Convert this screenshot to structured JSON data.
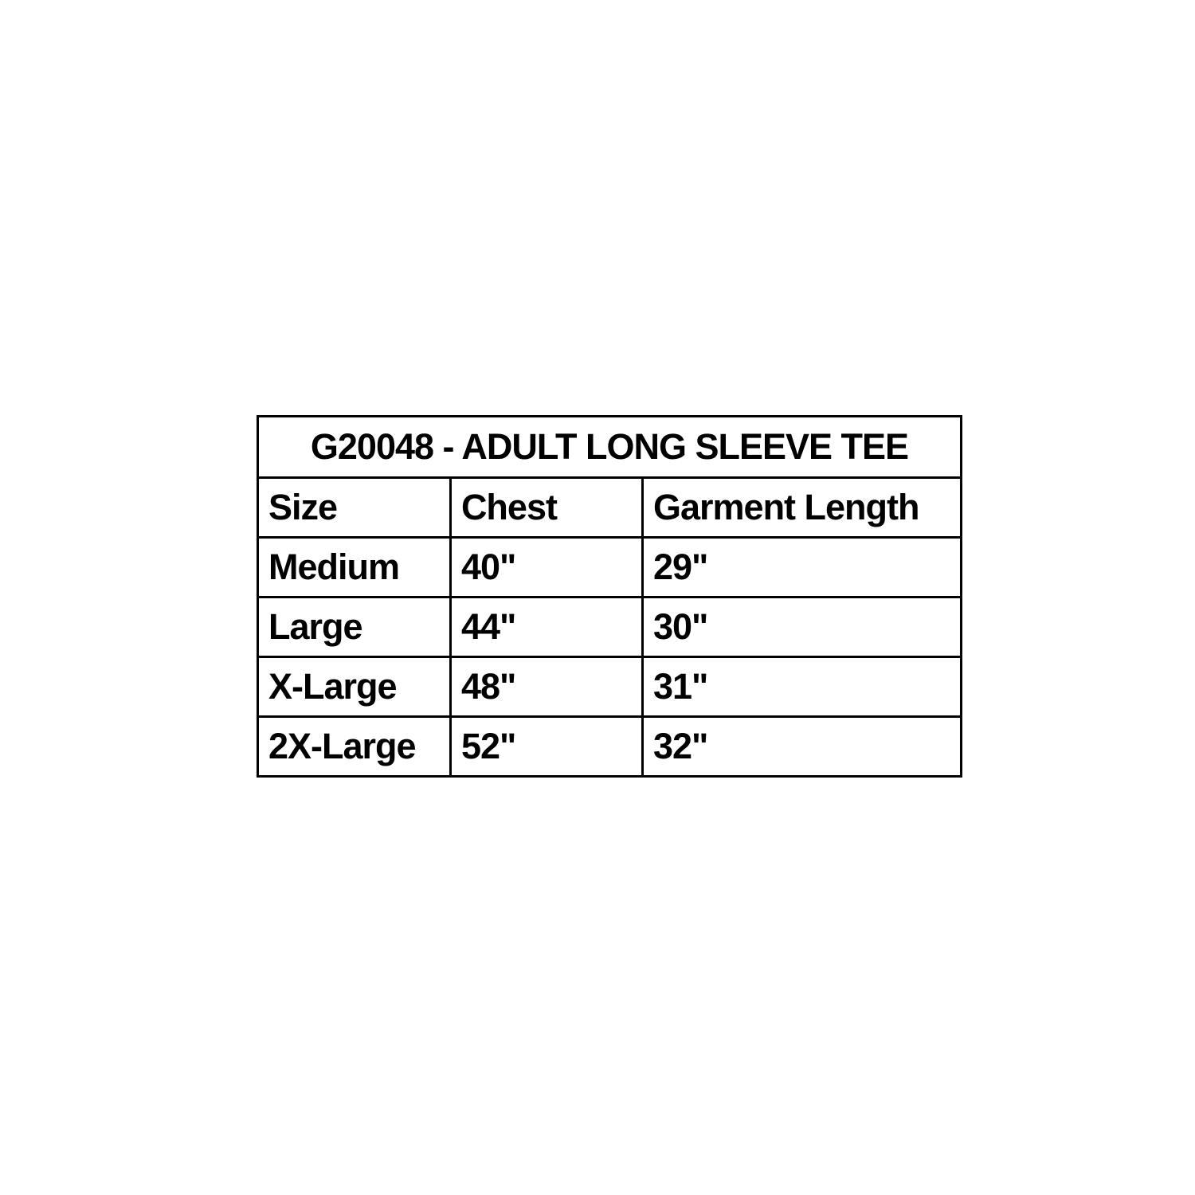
{
  "table": {
    "title": "G20048 - ADULT LONG SLEEVE TEE",
    "columns": {
      "size": "Size",
      "chest": "Chest",
      "garment_length": "Garment Length"
    },
    "rows": [
      {
        "size": "Medium",
        "chest": "40\"",
        "garment_length": "29\""
      },
      {
        "size": "Large",
        "chest": "44\"",
        "garment_length": "30\""
      },
      {
        "size": "X-Large",
        "chest": "48\"",
        "garment_length": "31\""
      },
      {
        "size": "2X-Large",
        "chest": "52\"",
        "garment_length": "32\""
      }
    ],
    "colors": {
      "border": "#000000",
      "text": "#000000",
      "background": "#ffffff"
    }
  }
}
